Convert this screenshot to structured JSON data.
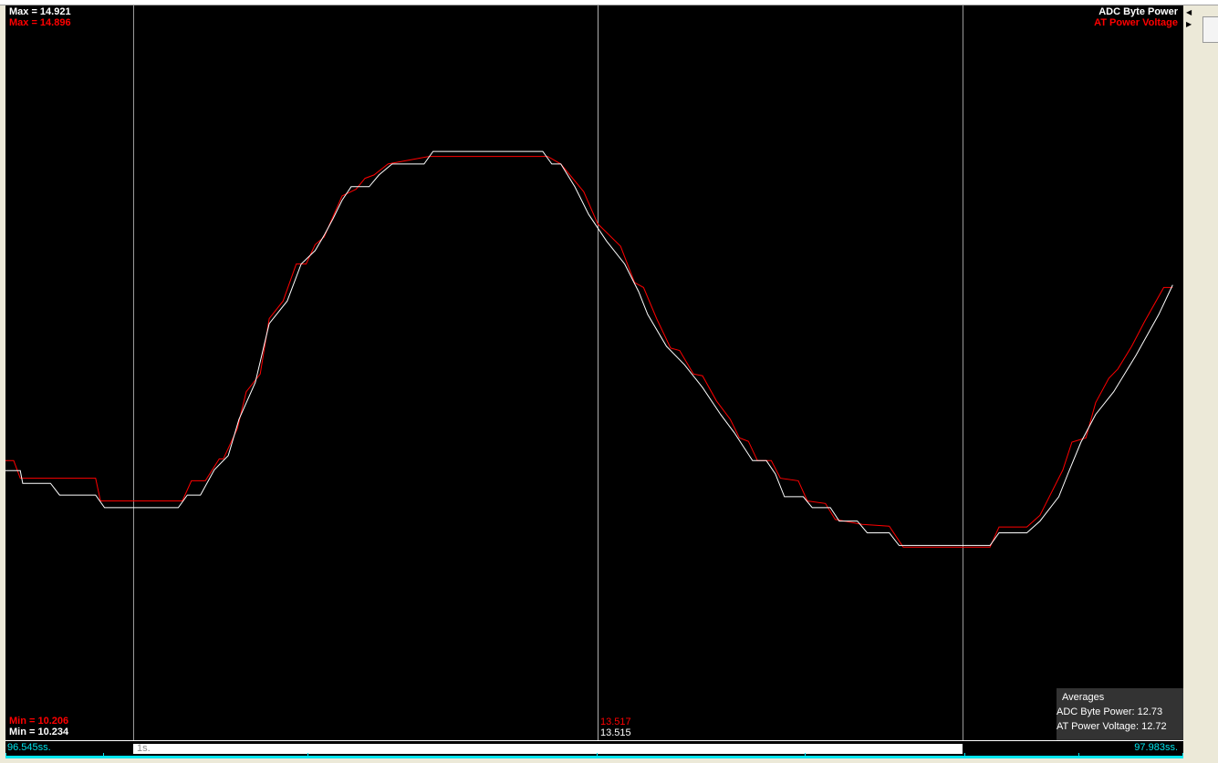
{
  "chart_data": {
    "type": "line",
    "x_unit": "s",
    "xlim": [
      96.545,
      97.983
    ],
    "x_start_label": "96.545ss.",
    "x_end_label": "97.983ss.",
    "scale_label": "1s.",
    "grid": false,
    "legend_placement": "top-right",
    "series": [
      {
        "name": "ADC Byte Power",
        "color": "#ffffff",
        "max_label": "Max = 14.921",
        "min_label": "Min = 10.234",
        "cursor_value": "13.515",
        "average_label": "ADC Byte Power: 12.73",
        "x": [
          96.545,
          96.563,
          96.566,
          96.6,
          96.611,
          96.655,
          96.666,
          96.756,
          96.767,
          96.783,
          96.8,
          96.817,
          96.83,
          96.85,
          96.867,
          96.889,
          96.906,
          96.923,
          96.934,
          96.945,
          96.956,
          96.967,
          96.989,
          97.001,
          97.017,
          97.056,
          97.067,
          97.201,
          97.212,
          97.223,
          97.24,
          97.257,
          97.279,
          97.301,
          97.318,
          97.329,
          97.352,
          97.374,
          97.396,
          97.418,
          97.435,
          97.457,
          97.474,
          97.485,
          97.496,
          97.519,
          97.53,
          97.552,
          97.563,
          97.585,
          97.597,
          97.624,
          97.636,
          97.747,
          97.758,
          97.792,
          97.808,
          97.831,
          97.842,
          97.858,
          97.876,
          97.898,
          97.925,
          97.953,
          97.97
        ],
        "y": [
          11.12,
          11.12,
          10.97,
          10.97,
          10.83,
          10.83,
          10.68,
          10.68,
          10.83,
          10.83,
          11.13,
          11.3,
          11.73,
          12.17,
          12.87,
          13.14,
          13.58,
          13.74,
          13.92,
          14.12,
          14.34,
          14.5,
          14.5,
          14.64,
          14.77,
          14.77,
          14.92,
          14.92,
          14.77,
          14.77,
          14.5,
          14.17,
          13.85,
          13.58,
          13.25,
          12.98,
          12.6,
          12.38,
          12.11,
          11.79,
          11.57,
          11.24,
          11.24,
          11.08,
          10.81,
          10.81,
          10.68,
          10.68,
          10.52,
          10.52,
          10.38,
          10.38,
          10.23,
          10.23,
          10.38,
          10.38,
          10.52,
          10.81,
          11.08,
          11.46,
          11.79,
          12.06,
          12.49,
          12.98,
          13.33
        ]
      },
      {
        "name": "AT Power Voltage",
        "color": "#ff0000",
        "max_label": "Max = 14.896",
        "min_label": "Min = 10.206",
        "cursor_value": "13.517",
        "average_label": "AT Power Voltage: 12.72",
        "x": [
          96.545,
          96.555,
          96.563,
          96.655,
          96.661,
          96.761,
          96.772,
          96.789,
          96.806,
          96.811,
          96.828,
          96.839,
          96.856,
          96.867,
          96.884,
          96.9,
          96.912,
          96.923,
          96.934,
          96.956,
          96.973,
          96.984,
          96.995,
          97.012,
          97.062,
          97.207,
          97.223,
          97.251,
          97.268,
          97.296,
          97.313,
          97.324,
          97.34,
          97.357,
          97.368,
          97.385,
          97.396,
          97.413,
          97.43,
          97.441,
          97.452,
          97.463,
          97.48,
          97.491,
          97.513,
          97.524,
          97.546,
          97.558,
          97.591,
          97.624,
          97.641,
          97.747,
          97.758,
          97.792,
          97.808,
          97.836,
          97.847,
          97.864,
          97.876,
          97.892,
          97.903,
          97.92,
          97.936,
          97.959,
          97.97
        ],
        "y": [
          11.24,
          11.24,
          11.03,
          11.03,
          10.76,
          10.76,
          11.0,
          11.0,
          11.26,
          11.26,
          11.62,
          12.06,
          12.27,
          12.93,
          13.14,
          13.58,
          13.58,
          13.81,
          13.9,
          14.39,
          14.47,
          14.6,
          14.64,
          14.77,
          14.86,
          14.86,
          14.77,
          14.44,
          14.06,
          13.79,
          13.36,
          13.3,
          12.93,
          12.58,
          12.55,
          12.27,
          12.25,
          11.95,
          11.73,
          11.51,
          11.47,
          11.24,
          11.24,
          11.03,
          11.0,
          10.76,
          10.73,
          10.54,
          10.48,
          10.46,
          10.21,
          10.21,
          10.45,
          10.45,
          10.59,
          11.13,
          11.46,
          11.51,
          11.93,
          12.22,
          12.33,
          12.6,
          12.9,
          13.3,
          13.3
        ]
      }
    ]
  },
  "averages": {
    "title": "Averages"
  }
}
